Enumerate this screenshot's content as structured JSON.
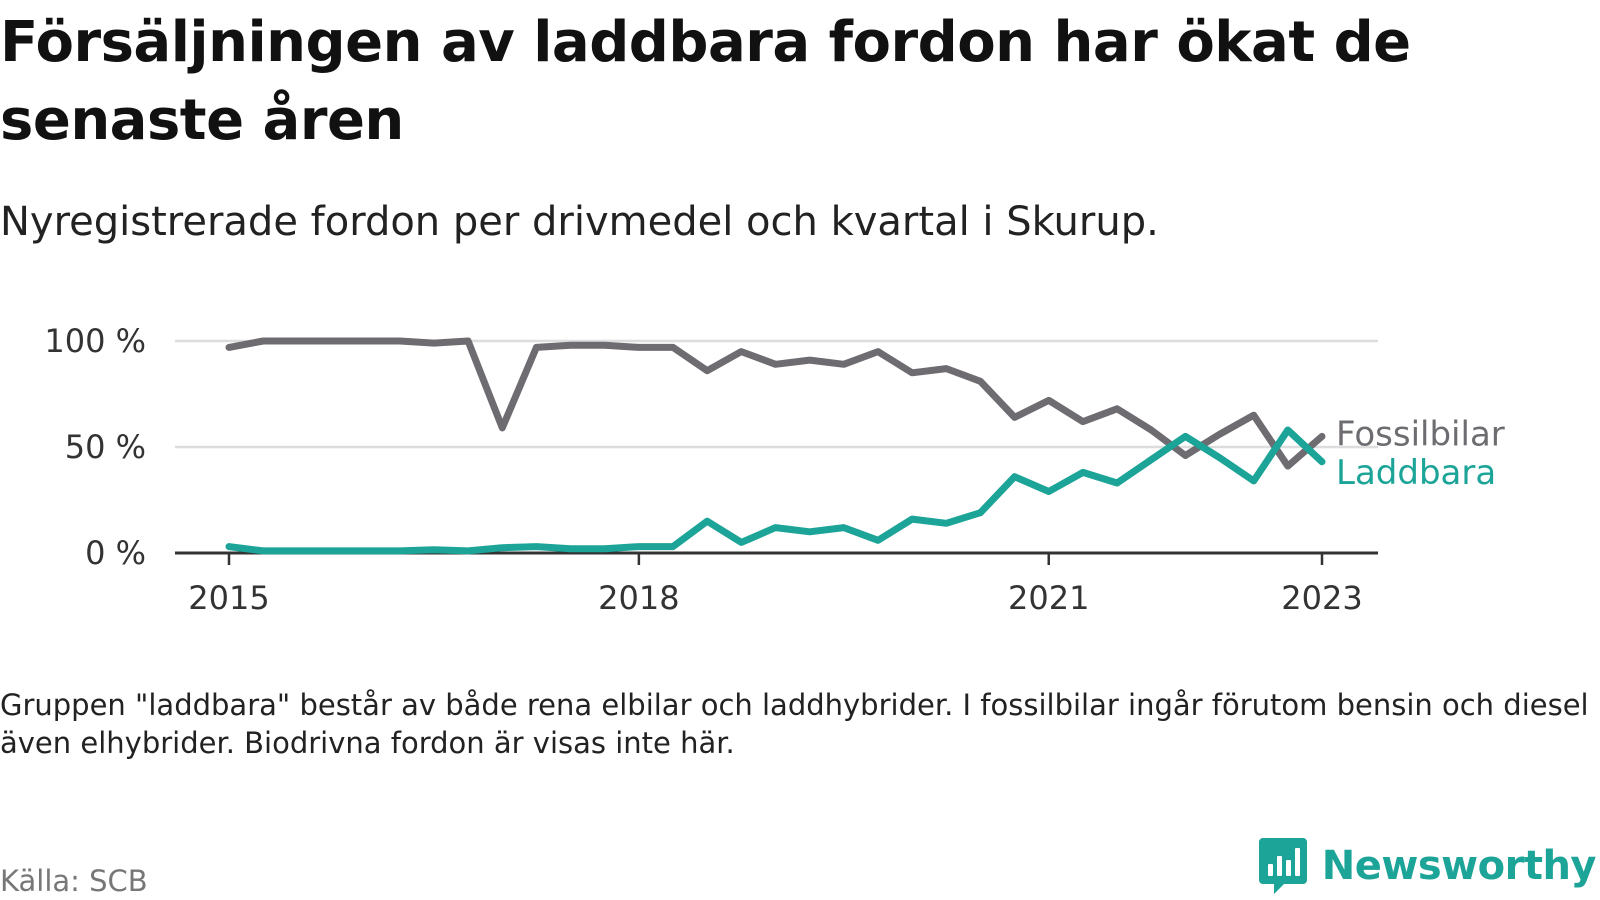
{
  "title": "Försäljningen av laddbara fordon har ökat de senaste åren",
  "subtitle": "Nyregistrerade fordon per drivmedel och kvartal i Skurup.",
  "note": "Gruppen \"laddbara\" består av både rena elbilar och laddhybrider. I fossilbilar ingår förutom bensin och diesel även elhybrider. Biodrivna fordon är visas inte här.",
  "source": "Källa: SCB",
  "brand": {
    "name": "Newsworthy",
    "color": "#1ba497",
    "icon": "bar-chart-speech-bubble-icon"
  },
  "chart_data": {
    "type": "line",
    "x_tick_labels": [
      "2015",
      "2018",
      "2021",
      "2023"
    ],
    "y_tick_labels": [
      "0 %",
      "50 %",
      "100 %"
    ],
    "ylim": [
      0,
      100
    ],
    "grid": true,
    "x": [
      "2015 Q1",
      "2015 Q2",
      "2015 Q3",
      "2015 Q4",
      "2016 Q1",
      "2016 Q2",
      "2016 Q3",
      "2016 Q4",
      "2017 Q1",
      "2017 Q2",
      "2017 Q3",
      "2017 Q4",
      "2018 Q1",
      "2018 Q2",
      "2018 Q3",
      "2018 Q4",
      "2019 Q1",
      "2019 Q2",
      "2019 Q3",
      "2019 Q4",
      "2020 Q1",
      "2020 Q2",
      "2020 Q3",
      "2020 Q4",
      "2021 Q1",
      "2021 Q2",
      "2021 Q3",
      "2021 Q4",
      "2022 Q1",
      "2022 Q2",
      "2022 Q3",
      "2022 Q4",
      "2023 Q1"
    ],
    "series": [
      {
        "name": "Fossilbilar",
        "color": "#6e6c71",
        "values": [
          97,
          100,
          100,
          100,
          100,
          100,
          99,
          100,
          59,
          97,
          98,
          98,
          97,
          97,
          86,
          95,
          89,
          91,
          89,
          95,
          85,
          87,
          81,
          64,
          72,
          62,
          68,
          58,
          46,
          56,
          65,
          41,
          55
        ]
      },
      {
        "name": "Laddbara",
        "color": "#1ba497",
        "values": [
          3,
          1,
          1,
          1,
          1,
          1,
          1.5,
          1,
          2.5,
          3,
          2,
          2,
          3,
          3,
          15,
          5,
          12,
          10,
          12,
          6,
          16,
          14,
          19,
          36,
          29,
          38,
          33,
          44,
          55,
          45,
          34,
          58,
          43
        ]
      }
    ]
  }
}
